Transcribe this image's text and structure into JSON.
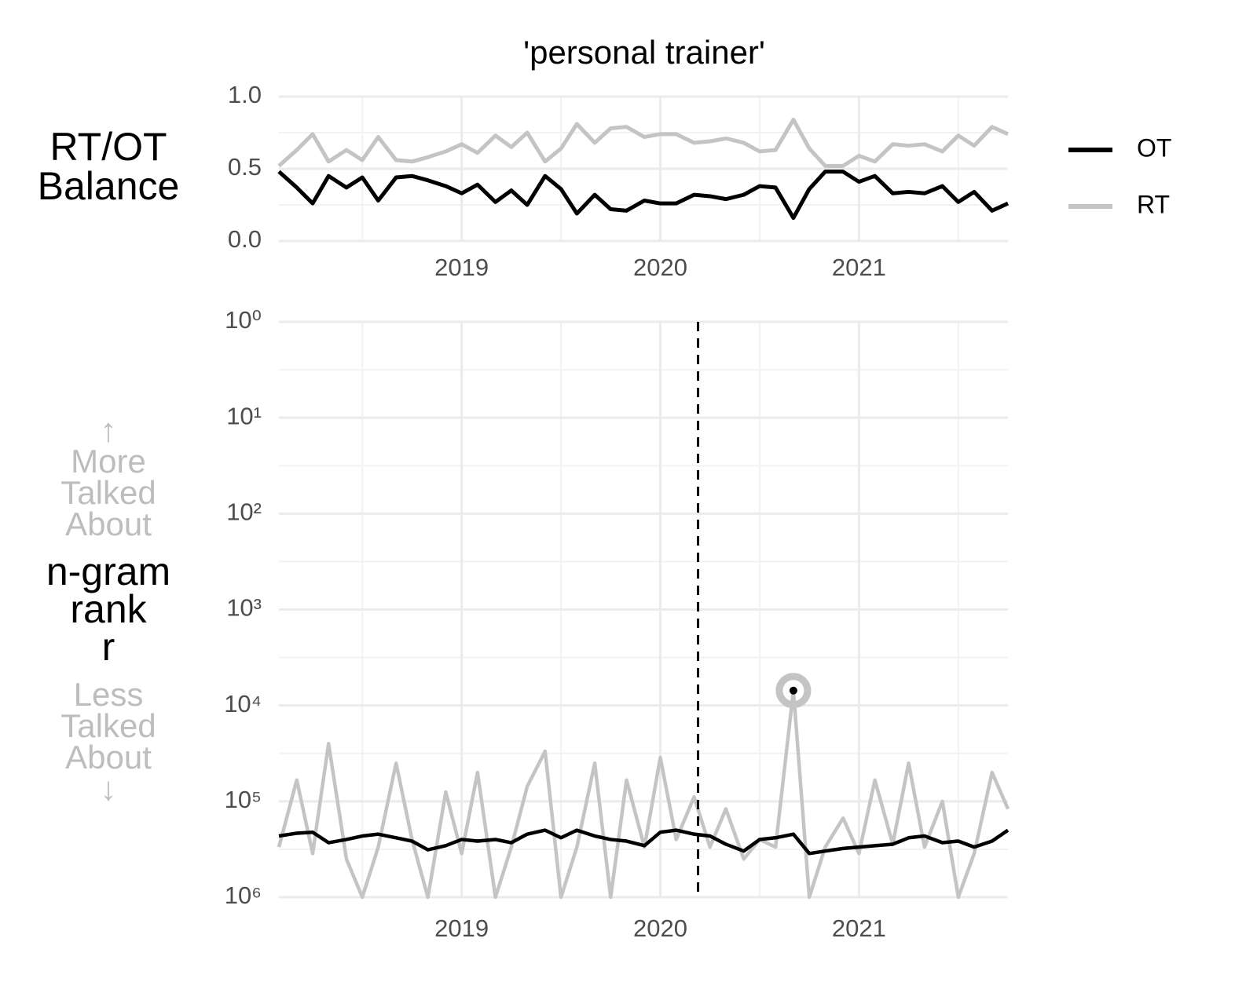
{
  "chart_data": [
    {
      "type": "line",
      "title": "'personal trainer'",
      "ylabel": [
        "RT/OT",
        "Balance"
      ],
      "x": [
        2018.08,
        2018.17,
        2018.25,
        2018.33,
        2018.42,
        2018.5,
        2018.58,
        2018.67,
        2018.75,
        2018.83,
        2018.92,
        2019.0,
        2019.08,
        2019.17,
        2019.25,
        2019.33,
        2019.42,
        2019.5,
        2019.58,
        2019.67,
        2019.75,
        2019.83,
        2019.92,
        2020.0,
        2020.08,
        2020.17,
        2020.25,
        2020.33,
        2020.42,
        2020.5,
        2020.58,
        2020.67,
        2020.75,
        2020.83,
        2020.92,
        2021.0,
        2021.08,
        2021.17,
        2021.25,
        2021.33,
        2021.42,
        2021.5,
        2021.58,
        2021.67,
        2021.75
      ],
      "series": [
        {
          "name": "OT",
          "color": "#000000",
          "values": [
            0.48,
            0.37,
            0.26,
            0.45,
            0.37,
            0.44,
            0.28,
            0.44,
            0.45,
            0.42,
            0.38,
            0.33,
            0.39,
            0.27,
            0.35,
            0.25,
            0.45,
            0.36,
            0.19,
            0.32,
            0.22,
            0.21,
            0.28,
            0.26,
            0.26,
            0.32,
            0.31,
            0.29,
            0.32,
            0.38,
            0.37,
            0.16,
            0.36,
            0.48,
            0.48,
            0.41,
            0.45,
            0.33,
            0.34,
            0.33,
            0.38,
            0.27,
            0.34,
            0.21,
            0.26
          ]
        },
        {
          "name": "RT",
          "color": "#c4c4c4",
          "values": [
            0.52,
            0.63,
            0.74,
            0.55,
            0.63,
            0.56,
            0.72,
            0.56,
            0.55,
            0.58,
            0.62,
            0.67,
            0.61,
            0.73,
            0.65,
            0.75,
            0.55,
            0.64,
            0.81,
            0.68,
            0.78,
            0.79,
            0.72,
            0.74,
            0.74,
            0.68,
            0.69,
            0.71,
            0.68,
            0.62,
            0.63,
            0.84,
            0.64,
            0.52,
            0.52,
            0.59,
            0.55,
            0.67,
            0.66,
            0.67,
            0.62,
            0.73,
            0.66,
            0.79,
            0.74
          ]
        }
      ],
      "xlim": [
        2018.08,
        2021.75
      ],
      "xticks": [
        2019,
        2020,
        2021
      ],
      "ylim": [
        0,
        1
      ],
      "yticks": [
        {
          "value": 0,
          "label": "0.0"
        },
        {
          "value": 0.5,
          "label": "0.5"
        },
        {
          "value": 1,
          "label": "1.0"
        }
      ],
      "grid": true,
      "legend": "right"
    },
    {
      "type": "line",
      "ylabel": [
        "n-gram",
        "rank",
        "r"
      ],
      "upper_note": [
        "↑",
        "More",
        "Talked",
        "About"
      ],
      "lower_note": [
        "Less",
        "Talked",
        "About",
        "↓"
      ],
      "x": [
        2018.08,
        2018.17,
        2018.25,
        2018.33,
        2018.42,
        2018.5,
        2018.58,
        2018.67,
        2018.75,
        2018.83,
        2018.92,
        2019.0,
        2019.08,
        2019.17,
        2019.25,
        2019.33,
        2019.42,
        2019.5,
        2019.58,
        2019.67,
        2019.75,
        2019.83,
        2019.92,
        2020.0,
        2020.08,
        2020.17,
        2020.25,
        2020.33,
        2020.42,
        2020.5,
        2020.58,
        2020.67,
        2020.75,
        2020.83,
        2020.92,
        2021.0,
        2021.08,
        2021.17,
        2021.25,
        2021.33,
        2021.42,
        2021.5,
        2021.58,
        2021.67,
        2021.75
      ],
      "series": [
        {
          "name": "RT",
          "color": "#c4c4c4",
          "values": [
            300000,
            60000,
            350000,
            25000,
            400000,
            1000000,
            300000,
            40000,
            250000,
            1000000,
            80000,
            350000,
            50000,
            1000000,
            300000,
            70000,
            30000,
            1000000,
            300000,
            40000,
            1000000,
            60000,
            300000,
            35000,
            250000,
            90000,
            300000,
            120000,
            400000,
            250000,
            300000,
            7000,
            1000000,
            300000,
            150000,
            350000,
            60000,
            280000,
            40000,
            300000,
            100000,
            1000000,
            350000,
            50000,
            120000
          ]
        },
        {
          "name": "OT",
          "color": "#000000",
          "values": [
            230000,
            215000,
            210000,
            270000,
            250000,
            230000,
            220000,
            240000,
            260000,
            320000,
            290000,
            250000,
            260000,
            250000,
            270000,
            220000,
            200000,
            240000,
            200000,
            230000,
            250000,
            260000,
            290000,
            210000,
            200000,
            220000,
            230000,
            280000,
            330000,
            250000,
            240000,
            220000,
            350000,
            330000,
            310000,
            300000,
            290000,
            280000,
            240000,
            230000,
            270000,
            260000,
            300000,
            260000,
            200000
          ]
        }
      ],
      "xlim": [
        2018.08,
        2021.75
      ],
      "xticks": [
        2019,
        2020,
        2021
      ],
      "ylim": [
        1,
        1000000
      ],
      "ylog": true,
      "y_reversed": true,
      "yticks": [
        {
          "value": 1,
          "label": "10⁰"
        },
        {
          "value": 10,
          "label": "10¹"
        },
        {
          "value": 100,
          "label": "10²"
        },
        {
          "value": 1000,
          "label": "10³"
        },
        {
          "value": 10000,
          "label": "10⁴"
        },
        {
          "value": 100000,
          "label": "10⁵"
        },
        {
          "value": 1000000,
          "label": "10⁶"
        }
      ],
      "vline_x": 2020.19,
      "grid": true
    }
  ]
}
